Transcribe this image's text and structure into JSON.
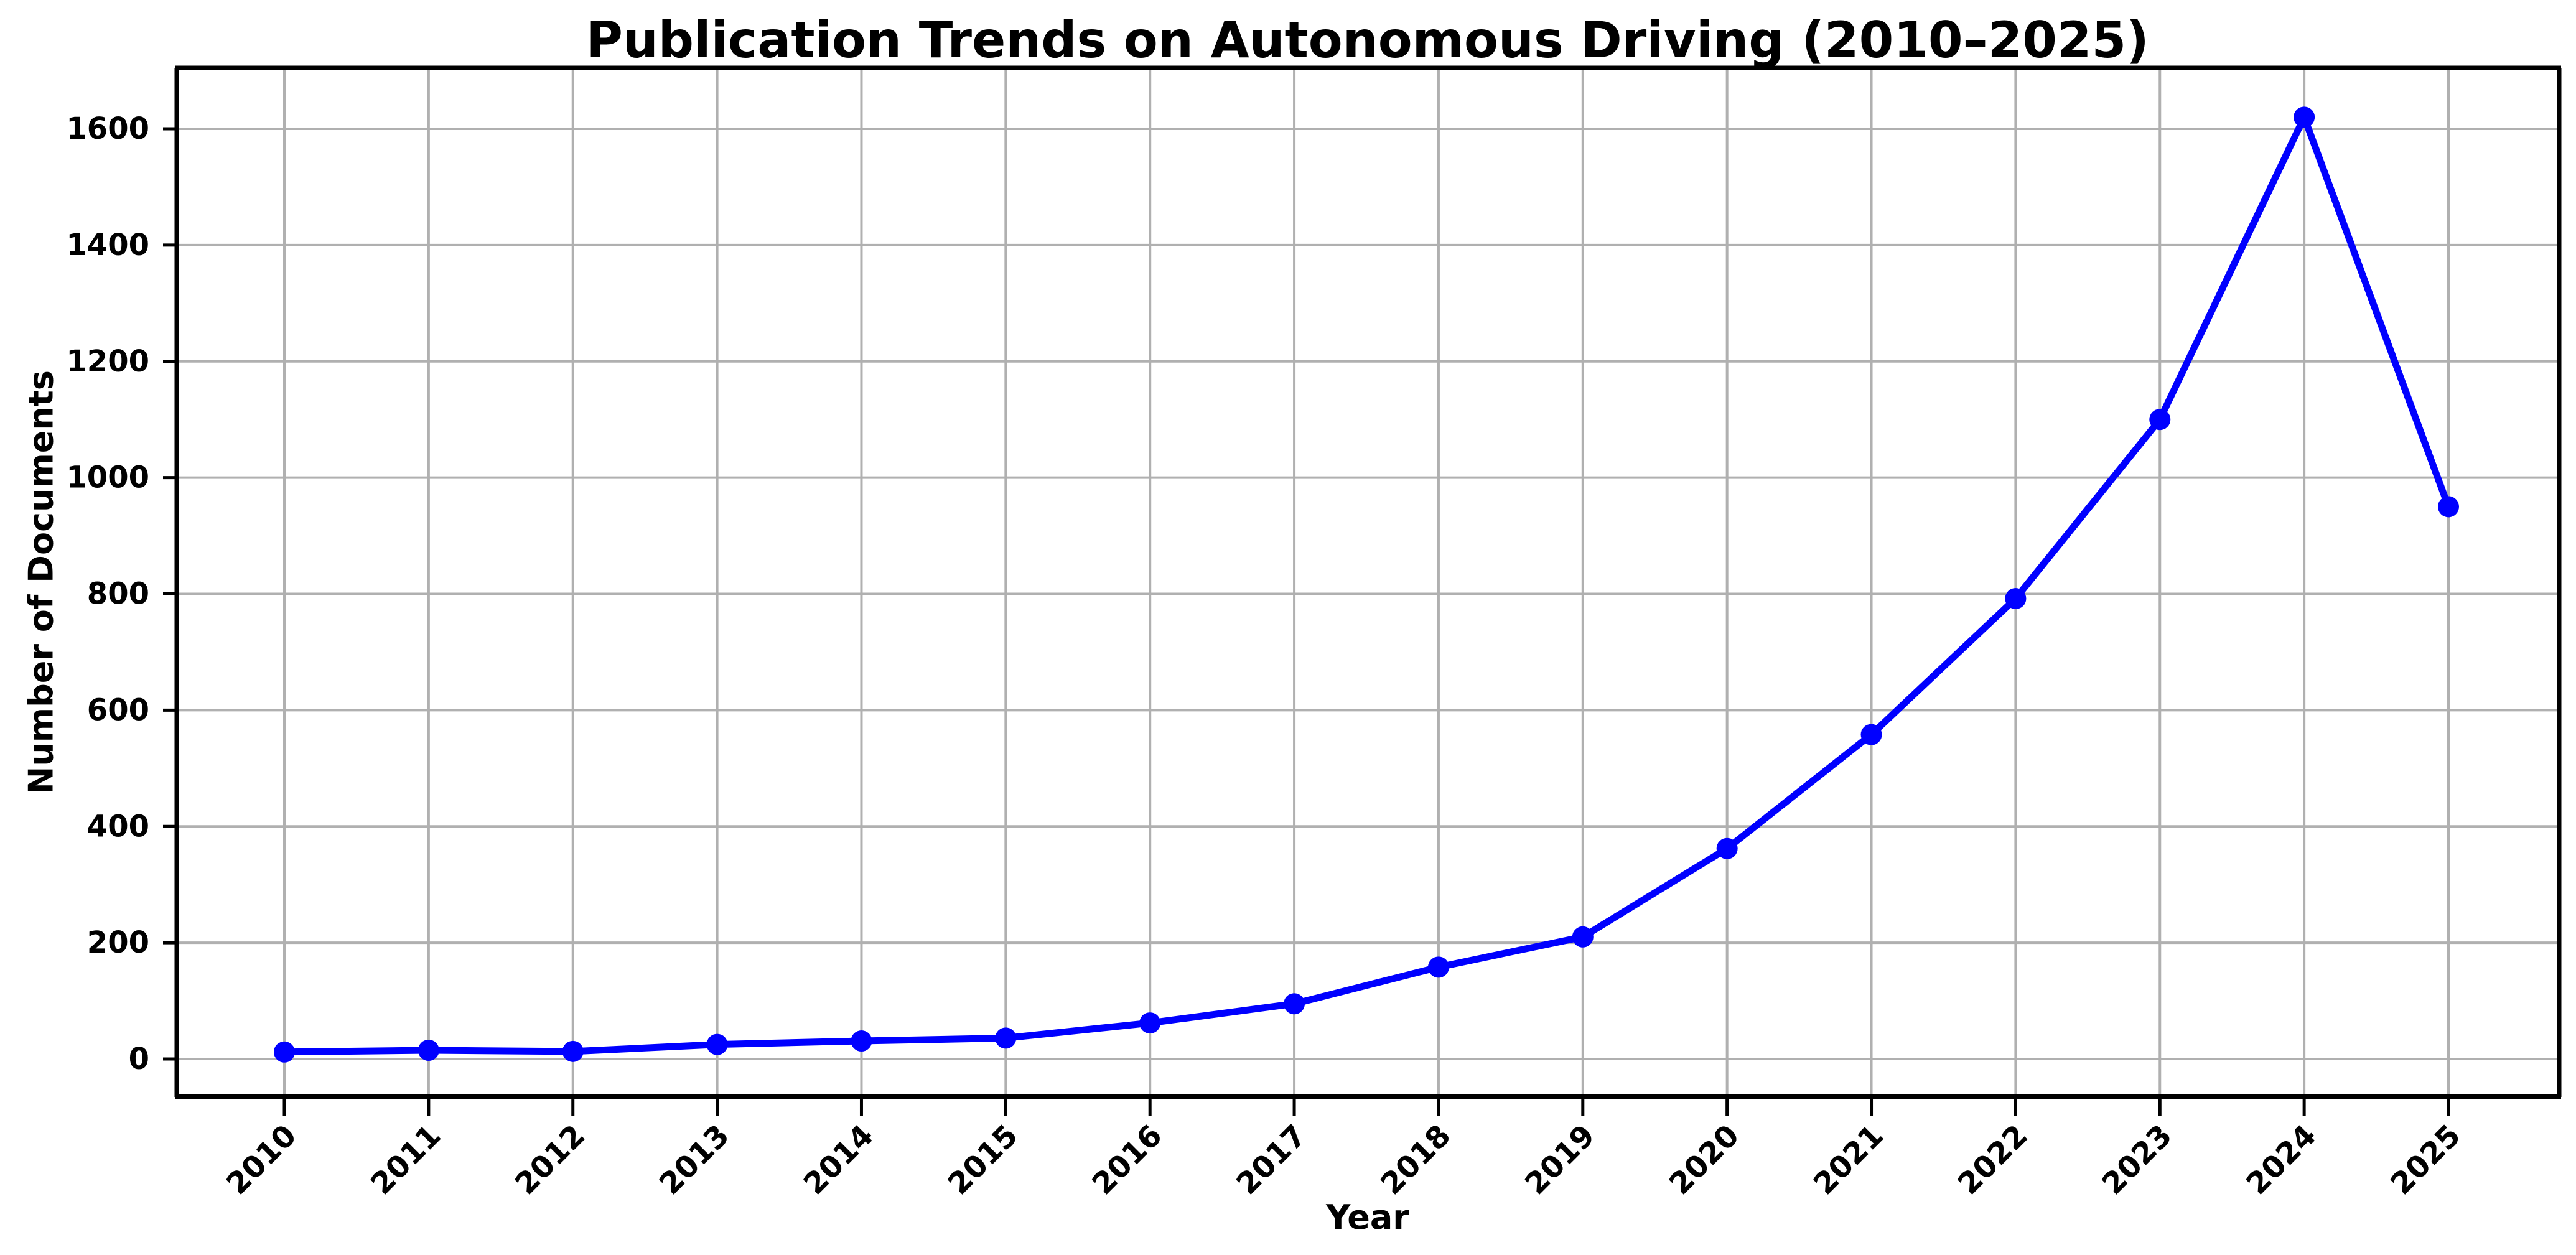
{
  "figure": {
    "title": "Publication Trends on Autonomous Driving (2010–2025)",
    "xlabel": "Year",
    "ylabel": "Number of Documents"
  },
  "chart_data": {
    "type": "line",
    "title": "Publication Trends on Autonomous Driving (2010–2025)",
    "xlabel": "Year",
    "ylabel": "Number of Documents",
    "categories": [
      "2010",
      "2011",
      "2012",
      "2013",
      "2014",
      "2015",
      "2016",
      "2017",
      "2018",
      "2019",
      "2020",
      "2021",
      "2022",
      "2023",
      "2024",
      "2025"
    ],
    "values": [
      12,
      15,
      13,
      25,
      31,
      36,
      62,
      95,
      158,
      210,
      362,
      558,
      792,
      1100,
      1620,
      950
    ],
    "yticks": [
      0,
      200,
      400,
      600,
      800,
      1000,
      1200,
      1400,
      1600
    ],
    "ylim": [
      -65,
      1705
    ],
    "grid": true,
    "legend": "none",
    "marker": "circle",
    "line_color": "#0000ff",
    "grid_color": "#b0b0b0",
    "spine_color": "#000000",
    "tick_label_rotation_deg": 45
  }
}
